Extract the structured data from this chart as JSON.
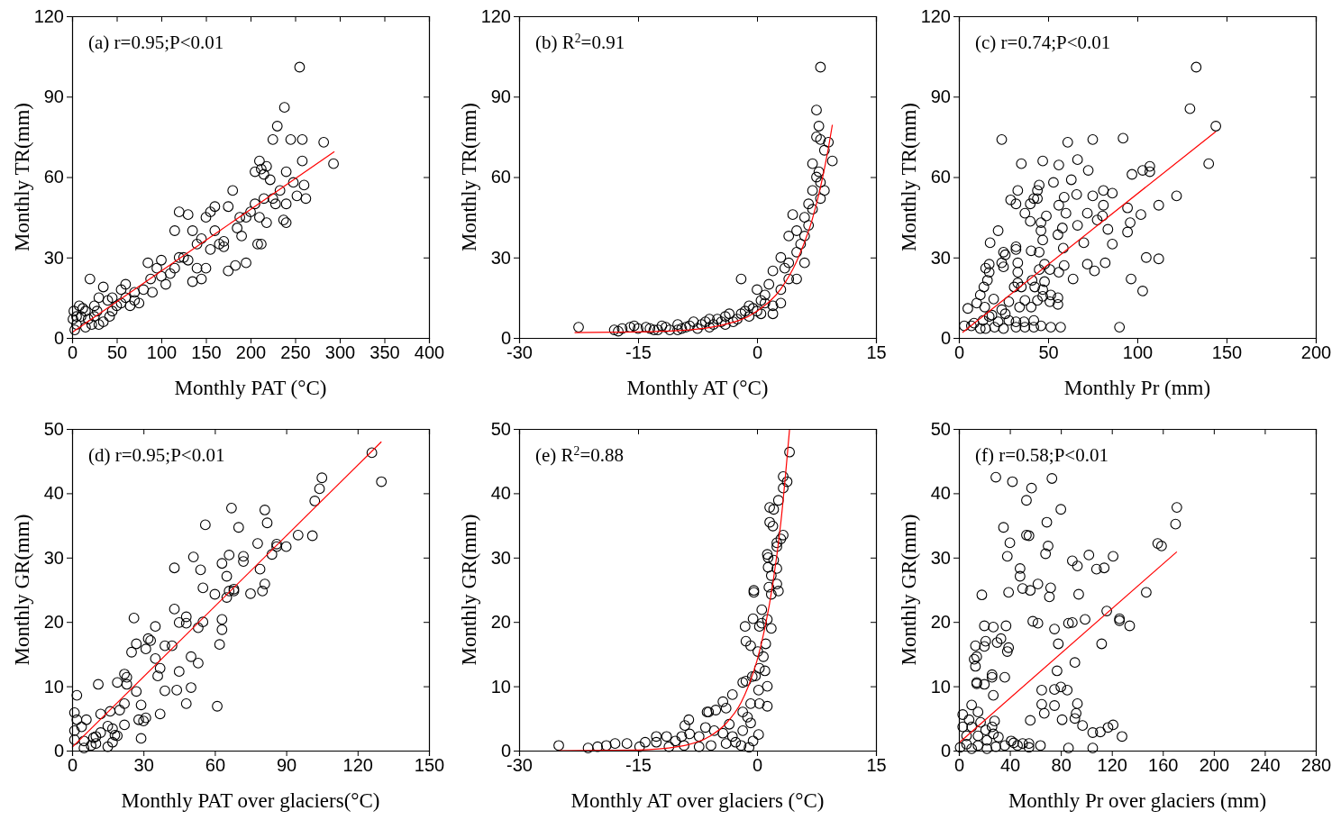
{
  "chart_data": [
    {
      "type": "scatter",
      "xlabel": "Monthly PAT (°C)",
      "ylabel": "Monthly TR(mm)",
      "annotations": [
        "(a) r=0.95;P<0.01"
      ],
      "xlim": [
        0,
        400
      ],
      "ylim": [
        0,
        120
      ],
      "xticks": [
        0,
        50,
        100,
        150,
        200,
        250,
        300,
        350,
        400
      ],
      "yticks": [
        0,
        30,
        60,
        90,
        120
      ],
      "marker": "circle",
      "series": [
        {
          "color": "#000000",
          "x": [
            255,
            238,
            230,
            225,
            245,
            258,
            282,
            293,
            258,
            210,
            212,
            218,
            215,
            222,
            205,
            260,
            240,
            248,
            233,
            225,
            228,
            240,
            252,
            215,
            262,
            205,
            210,
            212,
            208,
            218,
            237,
            240,
            180,
            188,
            150,
            155,
            120,
            130,
            175,
            160,
            115,
            135,
            190,
            195,
            185,
            165,
            155,
            170,
            175,
            183,
            140,
            150,
            130,
            100,
            120,
            145,
            135,
            95,
            85,
            100,
            88,
            110,
            80,
            70,
            60,
            55,
            45,
            40,
            30,
            25,
            20,
            35,
            15,
            10,
            5,
            3,
            8,
            12,
            18,
            22,
            28,
            50,
            65,
            75,
            90,
            105,
            115,
            125,
            140,
            160,
            170,
            195,
            200,
            145,
            42,
            30,
            2,
            1,
            5,
            15,
            25,
            35,
            45,
            55,
            60,
            70
          ],
          "values": [
            101,
            86,
            79,
            74,
            74,
            74,
            73,
            65,
            66,
            66,
            63,
            64,
            61,
            59,
            62,
            57,
            62,
            58,
            55,
            52,
            50,
            50,
            53,
            52,
            52,
            50,
            45,
            35,
            35,
            43,
            44,
            43,
            55,
            45,
            45,
            47,
            47,
            46,
            49,
            49,
            40,
            40,
            38,
            45,
            41,
            35,
            33,
            36,
            25,
            27,
            26,
            26,
            29,
            29,
            30,
            22,
            21,
            26,
            28,
            23,
            22,
            24,
            18,
            17,
            20,
            18,
            15,
            14,
            15,
            12,
            22,
            19,
            10,
            8,
            5,
            3,
            12,
            11,
            7,
            5,
            10,
            12,
            12,
            13,
            17,
            20,
            26,
            30,
            35,
            40,
            34,
            28,
            47,
            37,
            8,
            5,
            10,
            7,
            8,
            4,
            8,
            6,
            10,
            13,
            15,
            14
          ]
        },
        {
          "type": "line",
          "color": "#ff0000",
          "marker": "none",
          "x": [
            0,
            294
          ],
          "values": [
            2,
            69.5
          ]
        }
      ]
    },
    {
      "type": "scatter",
      "xlabel": "Monthly AT (°C)",
      "ylabel": "Monthly TR(mm)",
      "annotations": [
        "(b) R$^{2}$=0.91"
      ],
      "xlim": [
        -30,
        15
      ],
      "ylim": [
        0,
        120
      ],
      "xticks": [
        -30,
        -15,
        0,
        15
      ],
      "yticks": [
        0,
        30,
        60,
        90,
        120
      ],
      "marker": "circle",
      "series": [
        {
          "color": "#000000",
          "x": [
            -22.5,
            -18,
            -17,
            -16,
            -15,
            -14,
            -13,
            -12,
            -11,
            -10,
            -9,
            -8,
            -7,
            -6,
            -5,
            -4,
            -3,
            -2,
            -1,
            0,
            -2,
            1,
            1,
            2,
            1.5,
            2,
            3,
            3,
            4,
            4,
            5,
            5,
            4.5,
            5.5,
            6,
            6,
            6.5,
            7,
            7.5,
            7,
            7.8,
            8,
            8.5,
            7.5,
            8,
            9,
            9.5,
            7.8,
            7.5,
            8,
            8.5,
            6,
            5,
            3,
            2,
            0,
            -1,
            -4,
            -6,
            -10,
            0.5,
            4,
            3.5,
            6.5,
            7,
            8,
            -17.5,
            -15.5,
            -13.5,
            -12.5,
            -11.5,
            -9.5,
            -8.5,
            -7.5,
            -6.5,
            -5.5,
            -4.5,
            -3.5,
            -2.5,
            -1.5,
            -0.5,
            0.5
          ],
          "values": [
            4,
            3,
            3.5,
            4,
            3.5,
            4,
            3,
            4.5,
            3,
            5,
            4,
            6,
            5,
            4,
            7,
            8,
            6,
            9,
            8,
            10,
            22,
            13,
            16,
            12,
            20,
            25,
            18,
            30,
            22,
            28,
            32,
            40,
            46,
            35,
            45,
            38,
            50,
            55,
            60,
            65,
            62,
            58,
            55,
            75,
            74,
            73,
            66,
            79,
            85,
            101,
            70,
            28,
            22,
            13,
            9,
            18,
            12,
            5,
            7,
            3,
            14,
            38,
            26,
            42,
            48,
            52,
            2.5,
            4.5,
            3.5,
            3,
            4,
            3.5,
            4.5,
            3.5,
            6,
            5,
            6,
            9,
            7,
            10,
            11,
            9
          ]
        },
        {
          "type": "line",
          "color": "#ff0000",
          "marker": "none",
          "x": [
            -23,
            -15,
            -10,
            -5,
            0,
            3,
            5,
            7,
            8,
            9,
            9.5
          ],
          "values": [
            2,
            2.2,
            2.7,
            4.4,
            10,
            18.3,
            28.6,
            44.6,
            56.2,
            70.8,
            79.5
          ]
        }
      ]
    },
    {
      "type": "scatter",
      "xlabel": "Monthly Pr (mm)",
      "ylabel": "Monthly TR(mm)",
      "annotations": [
        "(c) r=0.74;P<0.01"
      ],
      "xlim": [
        0,
        200
      ],
      "ylim": [
        0,
        120
      ],
      "xticks": [
        0,
        50,
        100,
        150,
        200
      ],
      "yticks": [
        0,
        30,
        60,
        90,
        120
      ],
      "marker": "circle",
      "series": [
        {
          "color": "#000000",
          "x": [
            133,
            129.5,
            144,
            140,
            24,
            61,
            75,
            92,
            35,
            47,
            56,
            66.5,
            72.5,
            97,
            103,
            107,
            107,
            63,
            53,
            45,
            44,
            33,
            29,
            32,
            42,
            44,
            40,
            37,
            40,
            49,
            46,
            46,
            47,
            22,
            17.5,
            59,
            56,
            60,
            66,
            75,
            81,
            86,
            81,
            72,
            80.5,
            77.5,
            83.5,
            66.5,
            58,
            55.5,
            70,
            86,
            58.5,
            94.5,
            102,
            112,
            122,
            96,
            94.5,
            105,
            112,
            96.5,
            103,
            82,
            72,
            76,
            64,
            59,
            56,
            51,
            48,
            45,
            45,
            40.5,
            32,
            32,
            33,
            33,
            25,
            26,
            24,
            25,
            17,
            15,
            17,
            16,
            14,
            12,
            41,
            48,
            42.5,
            47,
            33,
            35,
            31,
            51.5,
            55.5,
            55.5,
            51,
            47,
            44,
            40.5,
            37,
            34,
            28,
            24,
            19.5,
            14.5,
            10,
            5,
            17,
            18.5,
            26,
            32,
            36.5,
            42,
            46,
            51.5,
            57,
            90,
            42,
            37,
            32,
            25,
            20,
            15,
            12,
            7,
            3,
            8.5,
            13.5,
            22,
            28
          ],
          "values": [
            101,
            85.5,
            79,
            65,
            74,
            73,
            74,
            74.5,
            65,
            66,
            64.5,
            66.5,
            62.5,
            61,
            62.5,
            64,
            62,
            59,
            58,
            57,
            55,
            55,
            51.5,
            50,
            52,
            52,
            50,
            46.5,
            43.5,
            45.5,
            43,
            40,
            36.5,
            40,
            35.5,
            52.5,
            49.5,
            46.5,
            53.5,
            53,
            55,
            54,
            49.5,
            46.5,
            45.5,
            44,
            40.5,
            42,
            41,
            38.5,
            35.5,
            35,
            33.5,
            48.5,
            46,
            49.5,
            53,
            43,
            39.5,
            30,
            29.5,
            22,
            17.5,
            28,
            27.5,
            25,
            22,
            27,
            24.5,
            25.5,
            27.5,
            25.5,
            32,
            32.5,
            34,
            33,
            28,
            24.5,
            32,
            31,
            28,
            26.5,
            27.5,
            26,
            24.5,
            21.5,
            19,
            16,
            21.5,
            21,
            19,
            18,
            20.5,
            19,
            19,
            16,
            15,
            12.5,
            13.5,
            15.5,
            14,
            11.5,
            14,
            11.5,
            13.5,
            10.5,
            14.5,
            11.5,
            13,
            11,
            8,
            8.5,
            9,
            6,
            6,
            6.5,
            4.5,
            4,
            4,
            4,
            4,
            4,
            4,
            3.5,
            4,
            3.5,
            3.5,
            4.5,
            4.5,
            5.5,
            6.5,
            6,
            6.5
          ]
        },
        {
          "type": "line",
          "color": "#ff0000",
          "marker": "none",
          "x": [
            2,
            144
          ],
          "values": [
            2,
            77
          ]
        }
      ]
    },
    {
      "type": "scatter",
      "xlabel": "Monthly PAT over glaciers(°C)",
      "ylabel": "Monthly GR(mm)",
      "annotations": [
        "(d) r=0.95;P<0.01"
      ],
      "xlim": [
        0,
        150
      ],
      "ylim": [
        0,
        50
      ],
      "xticks": [
        0,
        30,
        60,
        90,
        120,
        150
      ],
      "yticks": [
        0,
        10,
        20,
        30,
        40,
        50
      ],
      "marker": "circle",
      "series": [
        {
          "color": "#000000",
          "x": [
            126,
            130,
            105,
            104,
            102,
            101,
            95,
            90,
            86,
            86,
            84,
            81,
            82,
            78,
            79,
            81,
            80,
            75,
            67,
            70,
            56,
            66,
            72,
            72,
            63,
            65,
            68,
            66,
            68,
            65,
            60,
            51,
            43,
            54,
            55,
            63,
            63,
            62,
            55,
            53,
            48,
            48,
            45,
            43,
            35,
            26,
            32,
            33,
            27,
            25,
            31,
            39,
            42,
            35,
            37,
            36,
            50,
            53,
            45,
            44,
            50,
            39,
            48,
            61,
            37,
            27,
            22,
            23,
            19,
            23,
            11,
            2,
            29,
            31,
            30,
            28,
            22,
            20,
            16,
            12,
            22,
            18,
            29,
            17,
            15,
            10,
            10,
            12,
            15,
            5,
            5,
            6,
            2,
            1,
            4,
            1,
            1,
            8,
            9,
            17,
            19
          ],
          "values": [
            46.3,
            41.8,
            42.4,
            40.7,
            38.8,
            33.4,
            33.5,
            31.7,
            32.1,
            31.7,
            30.5,
            37.4,
            35.4,
            32.2,
            28.2,
            25.9,
            24.8,
            24.4,
            37.7,
            34.7,
            35.1,
            30.4,
            30.2,
            29.4,
            29.1,
            27.1,
            25.1,
            24.8,
            24.8,
            23.8,
            24.3,
            30.1,
            28.4,
            28.1,
            25.3,
            20.4,
            18.8,
            16.5,
            20,
            19.1,
            20.8,
            19.8,
            19.9,
            22,
            19.3,
            20.6,
            17.4,
            17.1,
            16.6,
            15.3,
            15.8,
            16.3,
            16.3,
            14.3,
            12.8,
            11.6,
            14.6,
            13.6,
            12.3,
            9.4,
            9.8,
            9.3,
            7.3,
            6.9,
            5.7,
            9.2,
            11.9,
            11.4,
            10.6,
            10.3,
            10.3,
            8.6,
            7.1,
            5.1,
            4.6,
            4.8,
            7.3,
            6.3,
            6.1,
            5.7,
            4,
            2.4,
            1.9,
            1.3,
            0.6,
            1.1,
            2.2,
            2.8,
            3.8,
            0.4,
            1.5,
            4.8,
            4.8,
            5.9,
            3.7,
            3.1,
            1.7,
            0.8,
            2,
            3.4,
            2.3
          ]
        },
        {
          "type": "line",
          "color": "#ff0000",
          "marker": "none",
          "x": [
            0,
            130
          ],
          "values": [
            0.5,
            48
          ]
        }
      ]
    },
    {
      "type": "scatter",
      "xlabel": "Monthly AT over glaciers (°C)",
      "ylabel": "Monthly GR(mm)",
      "annotations": [
        "(e) R$^{2}$=0.88"
      ],
      "xlim": [
        -30,
        15
      ],
      "ylim": [
        0,
        50
      ],
      "xticks": [
        -30,
        -15,
        0,
        15
      ],
      "yticks": [
        0,
        10,
        20,
        30,
        40,
        50
      ],
      "marker": "circle",
      "series": [
        {
          "color": "#000000",
          "x": [
            4.1,
            3.3,
            3.8,
            3.3,
            2.7,
            1.6,
            2.1,
            1.6,
            2,
            3.3,
            3,
            2.5,
            2.5,
            1.3,
            1.4,
            2.1,
            1.4,
            2.5,
            1.8,
            1.5,
            2.5,
            2.7,
            1.8,
            -0.4,
            -0.4,
            0.6,
            -0.5,
            1.3,
            1.8,
            -1.5,
            0.3,
            0.6,
            -1.4,
            -0.8,
            0.1,
            1.1,
            0.8,
            0.3,
            1,
            -0.6,
            -0.2,
            -1.4,
            -1.8,
            0.2,
            1.3,
            -3.1,
            -4.3,
            -3.9,
            -5.2,
            -6.3,
            -6.1,
            -8.6,
            -9.1,
            -0.8,
            0.3,
            1.3,
            -1.8,
            -1.2,
            -0.8,
            -1.8,
            -3.5,
            -3.1,
            -4.3,
            -5.4,
            -6.5,
            -7.3,
            -8.5,
            -9.5,
            -10.3,
            -11.4,
            -12.7,
            -12.7,
            -14.1,
            -14.8,
            -16.4,
            -17.9,
            -19,
            -20.1,
            -21.3,
            -25,
            -5.8,
            -3.9,
            -2.7,
            -2,
            -9.2,
            -11.1,
            -7.3,
            -0.5,
            0.2,
            -1
          ],
          "values": [
            46.4,
            42.6,
            41.8,
            40.8,
            38.9,
            37.8,
            37.5,
            35.5,
            34.9,
            33.5,
            32.9,
            32.3,
            31.7,
            30.5,
            30,
            29.6,
            28.5,
            28.3,
            27.2,
            25.4,
            25.9,
            24.8,
            24.3,
            24.9,
            24.6,
            21.9,
            20.5,
            20.4,
            19,
            19.3,
            19.3,
            19.8,
            17,
            16.3,
            15.4,
            16.6,
            14.6,
            12.8,
            12.4,
            11.5,
            11.6,
            10.8,
            10.6,
            9.4,
            10,
            8.7,
            7.6,
            6.6,
            6.3,
            6,
            6,
            4.8,
            3.9,
            7.3,
            7.3,
            6.9,
            6,
            5.2,
            4.3,
            3.1,
            4.1,
            2.2,
            2.7,
            3.1,
            3.6,
            2.2,
            2.6,
            2.2,
            1.5,
            2.2,
            2.2,
            1.3,
            1.3,
            0.6,
            1.1,
            1.1,
            0.8,
            0.6,
            0.4,
            0.8,
            0.8,
            1.1,
            1.3,
            0.8,
            0.8,
            0.6,
            0.6,
            1.5,
            2.5,
            0.5
          ]
        },
        {
          "type": "line",
          "color": "#ff0000",
          "marker": "none",
          "x": [
            -25,
            -15,
            -10,
            -6,
            -4,
            -2,
            -1,
            0,
            1,
            2,
            3,
            4.1
          ],
          "values": [
            0,
            0.1,
            0.6,
            2.2,
            4.1,
            7.5,
            10.3,
            14,
            19.1,
            26,
            35.4,
            49.9
          ]
        }
      ]
    },
    {
      "type": "scatter",
      "xlabel": "Monthly Pr over glaciers (mm)",
      "ylabel": "Monthly GR(mm)",
      "annotations": [
        "(f) r=0.58;P<0.01"
      ],
      "xlim": [
        0,
        280
      ],
      "ylim": [
        0,
        50
      ],
      "xticks": [
        0,
        40,
        80,
        120,
        160,
        200,
        240,
        280
      ],
      "yticks": [
        0,
        10,
        20,
        30,
        40,
        50
      ],
      "marker": "circle",
      "series": [
        {
          "color": "#000000",
          "x": [
            29,
            42,
            73,
            57,
            53,
            80,
            35,
            69,
            40,
            53,
            55,
            70,
            68,
            38,
            102,
            121,
            89,
            93,
            108,
            114,
            171,
            170,
            156,
            159,
            48,
            48,
            50,
            56,
            62,
            72,
            71,
            94,
            39,
            18,
            147,
            116,
            126,
            126,
            134,
            99,
            86,
            89,
            58,
            62,
            75,
            78,
            112,
            91,
            77,
            80,
            75,
            85,
            65,
            65,
            67,
            75,
            93,
            92,
            91,
            97,
            81,
            56,
            105,
            111,
            117,
            121,
            128,
            86,
            105,
            64,
            55,
            50,
            43,
            36,
            29,
            20,
            27,
            37,
            21,
            13,
            20,
            30,
            33,
            39,
            38,
            12,
            14,
            13,
            14,
            14,
            20,
            26,
            26,
            36,
            27,
            10,
            15,
            3,
            8,
            17,
            28,
            3,
            10,
            21,
            26,
            31,
            6,
            15,
            22,
            27,
            1,
            6,
            10,
            15,
            22,
            41,
            46,
            55
          ],
          "values": [
            42.5,
            41.8,
            42.3,
            40.8,
            38.9,
            37.5,
            34.7,
            35.5,
            32.3,
            33.5,
            33.4,
            31.8,
            30.6,
            30.2,
            30.4,
            30.2,
            29.5,
            28.7,
            28.2,
            28.4,
            37.8,
            35.2,
            32.2,
            31.8,
            28.3,
            27.1,
            25.2,
            24.9,
            25.9,
            25.3,
            23.9,
            24.3,
            24.6,
            24.2,
            24.6,
            21.7,
            20.5,
            20.2,
            19.4,
            20.4,
            19.8,
            19.9,
            20.1,
            19.8,
            18.9,
            16.6,
            16.6,
            13.7,
            12.4,
            9.9,
            9.5,
            9.4,
            9.4,
            7.2,
            5.8,
            7,
            7.3,
            5.8,
            5,
            3.9,
            4.8,
            4.7,
            2.8,
            2.9,
            3.6,
            4,
            2.2,
            0.4,
            0.4,
            0.8,
            0.5,
            1.1,
            1.2,
            0.8,
            0.6,
            19.4,
            19.2,
            19.4,
            17,
            16.3,
            16.2,
            16.8,
            17.4,
            16,
            15.4,
            14.2,
            14.6,
            13.1,
            10.6,
            10.4,
            10.3,
            11.8,
            11.4,
            11.4,
            8.6,
            7.1,
            6,
            5.6,
            4.8,
            4.4,
            4.6,
            3.7,
            3.7,
            3.2,
            3.7,
            2.1,
            2.3,
            2.3,
            1.6,
            2.6,
            0.5,
            1,
            0.3,
            0.8,
            0.3,
            1.5,
            0.8,
            1.1
          ]
        },
        {
          "type": "line",
          "color": "#ff0000",
          "marker": "none",
          "x": [
            0,
            171
          ],
          "values": [
            1.2,
            30.9
          ]
        }
      ]
    }
  ]
}
